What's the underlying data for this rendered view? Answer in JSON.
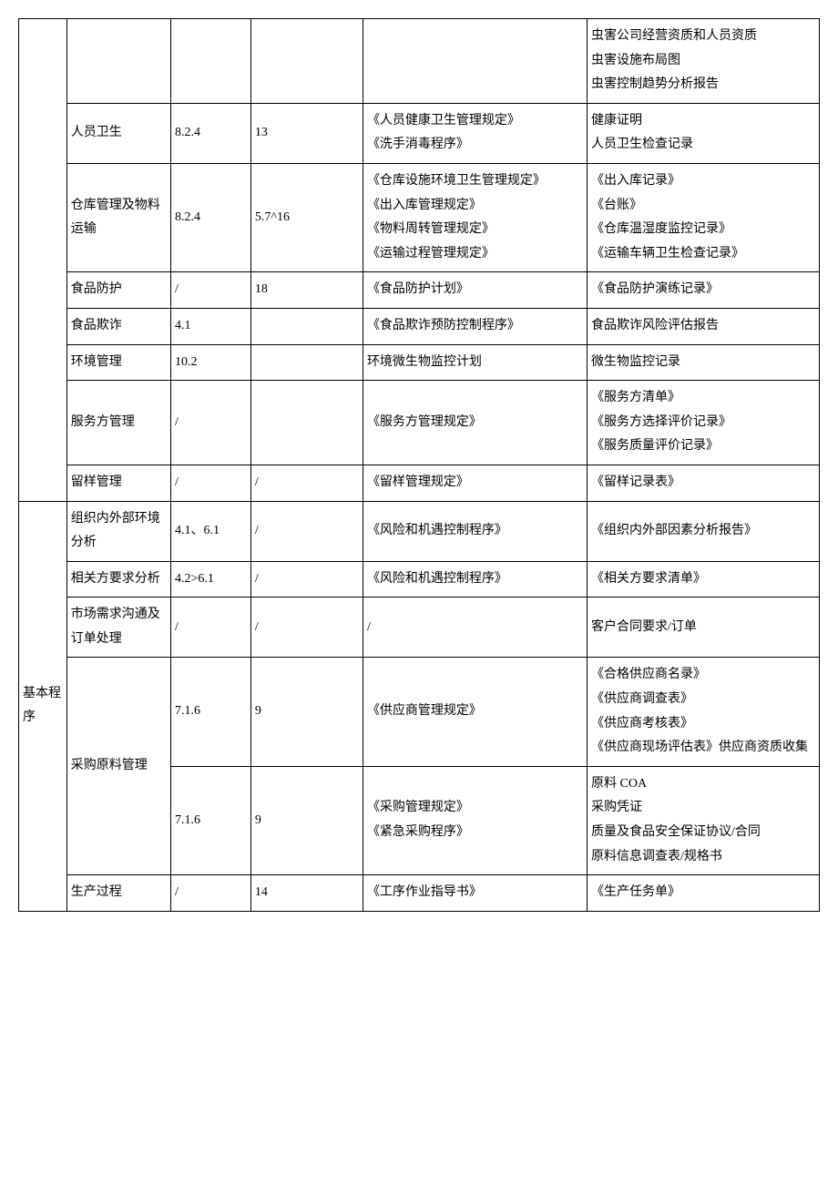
{
  "colors": {
    "border": "#000000",
    "background": "#ffffff",
    "text": "#000000"
  },
  "typography": {
    "font_family": "SimSun",
    "font_size_pt": 10,
    "line_height": 1.9
  },
  "table": {
    "column_widths_pct": [
      6,
      13,
      10,
      14,
      28,
      29
    ],
    "rows": [
      {
        "cells": {
          "a": "",
          "b": "",
          "c": "",
          "d": "",
          "e": "",
          "f": "虫害公司经营资质和人员资质\n虫害设施布局图\n虫害控制趋势分析报告"
        }
      },
      {
        "cells": {
          "b": "人员卫生",
          "c": "8.2.4",
          "d": "13",
          "e": "《人员健康卫生管理规定》\n《洗手消毒程序》",
          "f": "健康证明\n人员卫生检查记录"
        }
      },
      {
        "cells": {
          "b": "仓库管理及物料运输",
          "c": "8.2.4",
          "d": "5.7^16",
          "e": "《仓库设施环境卫生管理规定》\n《出入库管理规定》\n《物料周转管理规定》\n《运输过程管理规定》",
          "f": "《出入库记录》\n《台账》\n《仓库温湿度监控记录》\n《运输车辆卫生检查记录》"
        }
      },
      {
        "cells": {
          "b": "食品防护",
          "c": "/",
          "d": "18",
          "e": "《食品防护计划》",
          "f": "《食品防护演练记录》"
        }
      },
      {
        "cells": {
          "b": "食品欺诈",
          "c": "4.1",
          "d": "",
          "e": "《食品欺诈预防控制程序》",
          "f": "食品欺诈风险评估报告"
        }
      },
      {
        "cells": {
          "b": "环境管理",
          "c": "10.2",
          "d": "",
          "e": "环境微生物监控计划",
          "f": "微生物监控记录"
        }
      },
      {
        "cells": {
          "b": "服务方管理",
          "c": "/",
          "d": "",
          "e": "《服务方管理规定》",
          "f": "《服务方清单》\n《服务方选择评价记录》\n《服务质量评价记录》"
        }
      },
      {
        "cells": {
          "b": "留样管理",
          "c": "/",
          "d": "/",
          "e": "《留样管理规定》",
          "f": "《留样记录表》"
        }
      },
      {
        "cells": {
          "a": "基本程序",
          "b": "组织内外部环境分析",
          "c": "4.1、6.1",
          "d": "/",
          "e": "《风险和机遇控制程序》",
          "f": "《组织内外部因素分析报告》"
        }
      },
      {
        "cells": {
          "b": "相关方要求分析",
          "c": "4.2>6.1",
          "d": "/",
          "e": "《风险和机遇控制程序》",
          "f": "《相关方要求清单》"
        }
      },
      {
        "cells": {
          "b": "市场需求沟通及订单处理",
          "c": "/",
          "d": "/",
          "e": "/",
          "f": "客户合同要求/订单"
        }
      },
      {
        "cells": {
          "b": "采购原料管理",
          "c": "7.1.6",
          "d": "9",
          "e": "《供应商管理规定》",
          "f": "《合格供应商名录》\n《供应商调查表》\n《供应商考核表》\n《供应商现场评估表》供应商资质收集"
        }
      },
      {
        "cells": {
          "c": "7.1.6",
          "d": "9",
          "e": "《采购管理规定》\n《紧急采购程序》",
          "f": "原料 COA\n采购凭证\n质量及食品安全保证协议/合同\n原料信息调查表/规格书"
        }
      },
      {
        "cells": {
          "b": "生产过程",
          "c": "/",
          "d": "14",
          "e": "《工序作业指导书》",
          "f": "《生产任务单》"
        }
      }
    ]
  }
}
